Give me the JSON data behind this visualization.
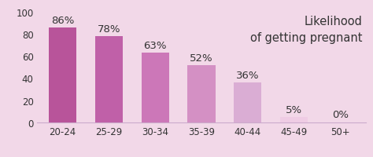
{
  "categories": [
    "20-24",
    "25-29",
    "30-34",
    "35-39",
    "40-44",
    "45-49",
    "50+"
  ],
  "values": [
    86,
    78,
    63,
    52,
    36,
    5,
    0
  ],
  "bar_colors": [
    "#b8549a",
    "#c060a8",
    "#cc77b8",
    "#d490c4",
    "#daadd4",
    "#efcce4",
    "#f5e5f0"
  ],
  "background_color": "#f2d8e8",
  "ylim": [
    0,
    100
  ],
  "yticks": [
    0,
    20,
    40,
    60,
    80,
    100
  ],
  "annotation_text": "Likelihood\nof getting pregnant",
  "annotation_fontsize": 10.5,
  "bar_label_fontsize": 9.5,
  "tick_fontsize": 8.5,
  "bar_width": 0.6,
  "text_color": "#333333"
}
